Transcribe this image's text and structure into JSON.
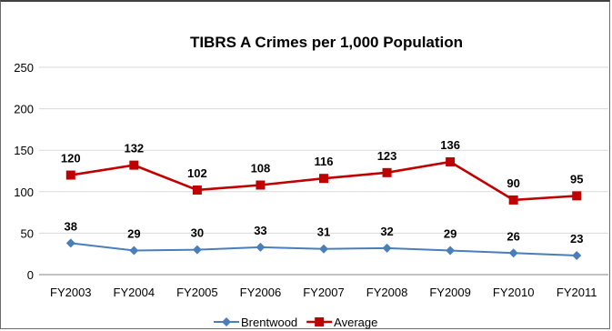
{
  "chart_data": {
    "type": "line",
    "title": "TIBRS A Crimes per 1,000 Population",
    "xlabel": "",
    "ylabel": "",
    "categories": [
      "FY2003",
      "FY2004",
      "FY2005",
      "FY2006",
      "FY2007",
      "FY2008",
      "FY2009",
      "FY2010",
      "FY2011"
    ],
    "ylim": [
      0,
      250
    ],
    "yticks": [
      "0",
      "50",
      "100",
      "150",
      "200",
      "250"
    ],
    "grid": true,
    "legend_position": "bottom",
    "series": [
      {
        "name": "Brentwood",
        "values": [
          38,
          29,
          30,
          33,
          31,
          32,
          29,
          26,
          23
        ],
        "labels": [
          "38",
          "29",
          "30",
          "33",
          "31",
          "32",
          "29",
          "26",
          "23"
        ],
        "color": "#4a7ebb",
        "marker": "diamond"
      },
      {
        "name": "Average",
        "values": [
          120,
          132,
          102,
          108,
          116,
          123,
          136,
          90,
          95
        ],
        "labels": [
          "120",
          "132",
          "102",
          "108",
          "116",
          "123",
          "136",
          "90",
          "95"
        ],
        "color": "#c00000",
        "marker": "square"
      }
    ]
  }
}
